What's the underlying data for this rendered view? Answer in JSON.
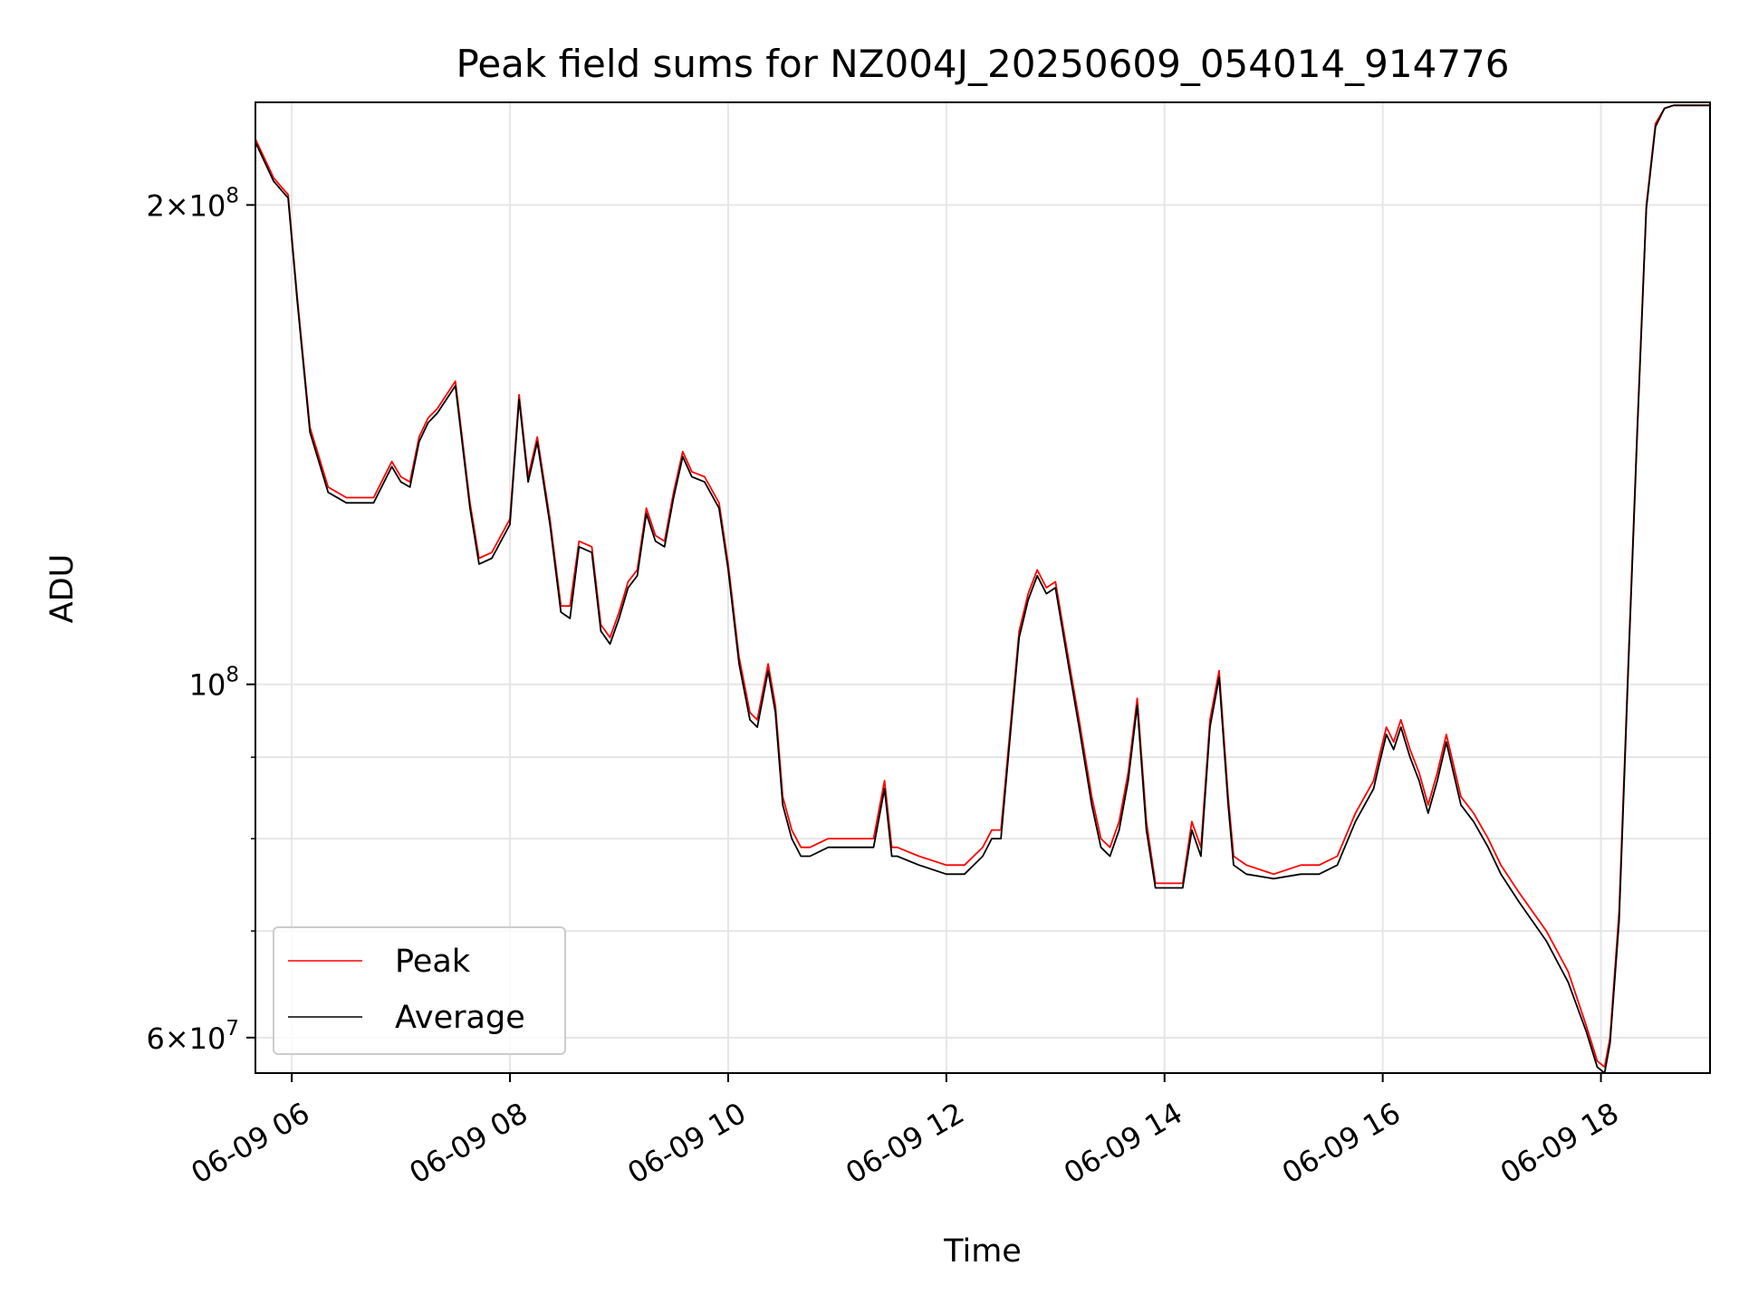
{
  "chart_data": {
    "type": "line",
    "title": "Peak field sums for NZ004J_20250609_054014_914776",
    "xlabel": "Time",
    "ylabel": "ADU",
    "yscale": "log",
    "ylim": [
      57000000,
      232000000
    ],
    "xlim": [
      "06-09 05:40",
      "06-09 19:00"
    ],
    "grid": true,
    "legend_position": "lower-left",
    "x_ticks": [
      {
        "t": "06-09 06:00",
        "label": "06-09 06"
      },
      {
        "t": "06-09 08:00",
        "label": "06-09 08"
      },
      {
        "t": "06-09 10:00",
        "label": "06-09 10"
      },
      {
        "t": "06-09 12:00",
        "label": "06-09 12"
      },
      {
        "t": "06-09 14:00",
        "label": "06-09 14"
      },
      {
        "t": "06-09 16:00",
        "label": "06-09 16"
      },
      {
        "t": "06-09 18:00",
        "label": "06-09 18"
      }
    ],
    "y_ticks": [
      {
        "value": 60000000,
        "base": "6",
        "exp": "7"
      },
      {
        "value": 100000000,
        "base": "",
        "exp": "8"
      },
      {
        "value": 200000000,
        "base": "2",
        "exp": "8"
      }
    ],
    "y_minor_ticks": [
      70000000,
      80000000,
      90000000
    ],
    "x": [
      "06-09 05:40",
      "06-09 05:50",
      "06-09 05:58",
      "06-09 06:03",
      "06-09 06:10",
      "06-09 06:20",
      "06-09 06:30",
      "06-09 06:45",
      "06-09 06:55",
      "06-09 07:00",
      "06-09 07:05",
      "06-09 07:10",
      "06-09 07:15",
      "06-09 07:20",
      "06-09 07:30",
      "06-09 07:38",
      "06-09 07:43",
      "06-09 07:50",
      "06-09 08:00",
      "06-09 08:05",
      "06-09 08:10",
      "06-09 08:15",
      "06-09 08:22",
      "06-09 08:28",
      "06-09 08:33",
      "06-09 08:38",
      "06-09 08:45",
      "06-09 08:50",
      "06-09 08:55",
      "06-09 09:00",
      "06-09 09:05",
      "06-09 09:10",
      "06-09 09:15",
      "06-09 09:20",
      "06-09 09:25",
      "06-09 09:30",
      "06-09 09:35",
      "06-09 09:40",
      "06-09 09:47",
      "06-09 09:55",
      "06-09 10:00",
      "06-09 10:06",
      "06-09 10:12",
      "06-09 10:16",
      "06-09 10:22",
      "06-09 10:26",
      "06-09 10:30",
      "06-09 10:35",
      "06-09 10:40",
      "06-09 10:45",
      "06-09 10:55",
      "06-09 11:05",
      "06-09 11:20",
      "06-09 11:26",
      "06-09 11:30",
      "06-09 11:33",
      "06-09 11:45",
      "06-09 12:00",
      "06-09 12:10",
      "06-09 12:20",
      "06-09 12:25",
      "06-09 12:30",
      "06-09 12:40",
      "06-09 12:45",
      "06-09 12:50",
      "06-09 12:55",
      "06-09 13:00",
      "06-09 13:07",
      "06-09 13:13",
      "06-09 13:20",
      "06-09 13:25",
      "06-09 13:30",
      "06-09 13:35",
      "06-09 13:40",
      "06-09 13:45",
      "06-09 13:50",
      "06-09 13:55",
      "06-09 14:00",
      "06-09 14:10",
      "06-09 14:15",
      "06-09 14:20",
      "06-09 14:25",
      "06-09 14:30",
      "06-09 14:35",
      "06-09 14:38",
      "06-09 14:45",
      "06-09 15:00",
      "06-09 15:15",
      "06-09 15:25",
      "06-09 15:35",
      "06-09 15:45",
      "06-09 15:55",
      "06-09 15:58",
      "06-09 16:02",
      "06-09 16:06",
      "06-09 16:10",
      "06-09 16:15",
      "06-09 16:20",
      "06-09 16:25",
      "06-09 16:30",
      "06-09 16:35",
      "06-09 16:43",
      "06-09 16:50",
      "06-09 16:58",
      "06-09 17:05",
      "06-09 17:15",
      "06-09 17:30",
      "06-09 17:42",
      "06-09 17:52",
      "06-09 17:58",
      "06-09 18:02",
      "06-09 18:05",
      "06-09 18:10",
      "06-09 18:15",
      "06-09 18:20",
      "06-09 18:25",
      "06-09 18:30",
      "06-09 18:35",
      "06-09 18:40",
      "06-09 18:45",
      "06-09 18:50",
      "06-09 19:00"
    ],
    "series": [
      {
        "name": "Peak",
        "color": "#ff0000",
        "values": [
          220000000,
          208000000,
          203000000,
          175000000,
          145000000,
          133000000,
          131000000,
          131000000,
          138000000,
          135000000,
          134000000,
          143000000,
          147000000,
          149000000,
          155000000,
          130000000,
          120000000,
          121000000,
          127000000,
          152000000,
          135000000,
          143000000,
          127000000,
          112000000,
          112000000,
          123000000,
          122000000,
          109000000,
          107000000,
          111000000,
          116000000,
          118000000,
          129000000,
          124000000,
          123000000,
          132000000,
          140000000,
          136000000,
          135000000,
          130000000,
          119000000,
          104000000,
          96000000,
          95000000,
          103000000,
          97000000,
          85000000,
          81000000,
          79000000,
          79000000,
          80000000,
          80000000,
          80000000,
          87000000,
          79000000,
          79000000,
          78000000,
          77000000,
          77000000,
          79000000,
          81000000,
          81000000,
          108000000,
          114000000,
          118000000,
          115000000,
          116000000,
          104000000,
          95000000,
          85000000,
          80000000,
          79000000,
          82000000,
          88000000,
          98000000,
          82000000,
          75000000,
          75000000,
          75000000,
          82000000,
          79000000,
          95000000,
          102000000,
          85000000,
          78000000,
          77000000,
          76000000,
          77000000,
          77000000,
          78000000,
          83000000,
          87000000,
          90000000,
          94000000,
          92000000,
          95000000,
          91000000,
          88000000,
          84000000,
          88000000,
          93000000,
          85000000,
          83000000,
          80000000,
          77000000,
          74000000,
          70000000,
          66000000,
          61000000,
          58000000,
          57500000,
          60000000,
          72000000,
          103000000,
          145000000,
          200000000,
          225000000,
          230000000,
          231000000,
          231000000,
          231000000,
          231000000
        ]
      },
      {
        "name": "Average",
        "color": "#000000",
        "values": [
          219000000,
          207000000,
          202000000,
          174000000,
          144000000,
          132000000,
          130000000,
          130000000,
          137000000,
          134000000,
          133000000,
          142000000,
          146000000,
          148000000,
          154000000,
          129000000,
          119000000,
          120000000,
          126000000,
          151000000,
          134000000,
          142000000,
          126000000,
          111000000,
          110000000,
          122000000,
          121000000,
          108000000,
          106000000,
          110000000,
          115000000,
          117000000,
          128000000,
          123000000,
          122000000,
          131000000,
          139000000,
          135000000,
          134000000,
          129000000,
          118000000,
          103000000,
          95000000,
          94000000,
          102000000,
          96000000,
          84000000,
          80000000,
          78000000,
          78000000,
          79000000,
          79000000,
          79000000,
          86000000,
          78000000,
          78000000,
          77000000,
          76000000,
          76000000,
          78000000,
          80000000,
          80000000,
          107000000,
          113000000,
          117000000,
          114000000,
          115000000,
          103000000,
          94000000,
          84000000,
          79000000,
          78000000,
          81000000,
          87000000,
          97000000,
          81000000,
          74500000,
          74500000,
          74500000,
          81000000,
          78000000,
          94000000,
          101000000,
          84000000,
          77000000,
          76000000,
          75500000,
          76000000,
          76000000,
          77000000,
          82000000,
          86000000,
          89000000,
          93000000,
          91000000,
          94000000,
          90000000,
          87000000,
          83000000,
          87000000,
          92000000,
          84000000,
          82000000,
          79000000,
          76000000,
          73000000,
          69000000,
          65000000,
          60500000,
          57500000,
          57000000,
          59500000,
          71000000,
          102000000,
          144000000,
          199000000,
          224000000,
          230000000,
          231000000,
          231000000,
          231000000,
          231000000
        ]
      }
    ]
  }
}
